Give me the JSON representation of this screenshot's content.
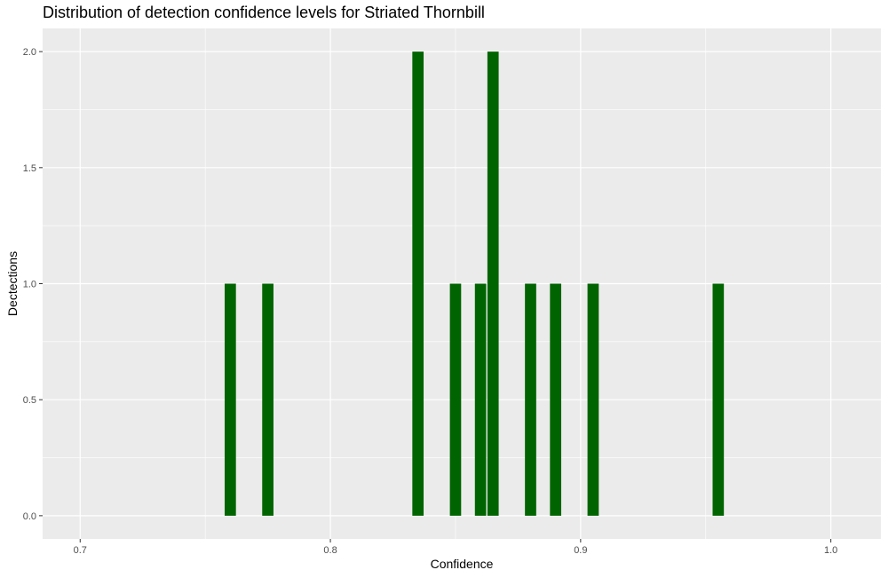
{
  "chart_data": {
    "type": "bar",
    "title": "Distribution of detection confidence levels for Striated Thornbill",
    "xlabel": "Confidence",
    "ylabel": "Dectections",
    "xlim": [
      0.685,
      1.02
    ],
    "ylim": [
      -0.1,
      2.1
    ],
    "x_ticks": [
      0.7,
      0.8,
      0.9,
      1.0
    ],
    "x_tick_labels": [
      "0.7",
      "0.8",
      "0.9",
      "1.0"
    ],
    "y_ticks": [
      0.0,
      0.5,
      1.0,
      1.5,
      2.0
    ],
    "y_tick_labels": [
      "0.0",
      "0.5",
      "1.0",
      "1.5",
      "2.0"
    ],
    "bar_width": 0.0045,
    "x": [
      0.76,
      0.775,
      0.835,
      0.85,
      0.86,
      0.865,
      0.88,
      0.89,
      0.905,
      0.955
    ],
    "values": [
      1,
      1,
      2,
      1,
      1,
      2,
      1,
      1,
      1,
      1
    ],
    "grid": true,
    "bar_color": "#006400",
    "panel_color": "#ebebeb",
    "grid_color": "#ffffff"
  }
}
